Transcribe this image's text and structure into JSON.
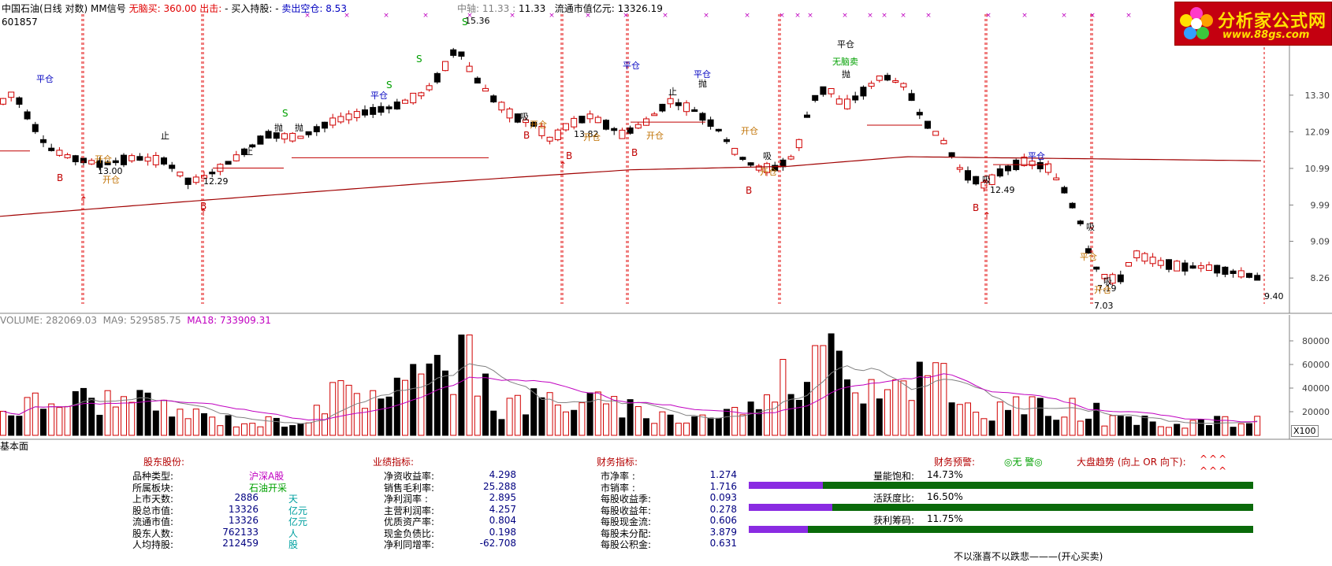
{
  "price_header": {
    "title": "中国石油(日线 对数)",
    "indicator": "MM信号",
    "buy_label": "无脑买:",
    "buy_value": "360.00",
    "sell_label": "出击:",
    "sell_value": "-",
    "hold_label": "买入持股:",
    "hold_value": "-",
    "short_label": "卖出空仓:",
    "short_value": "8.53",
    "axis_label": "中轴:",
    "axis_value_1": "11.33",
    "axis_value_2": "11.33",
    "mcap_label": "流通市值亿元:",
    "mcap_value": "13326.19",
    "code": "601857"
  },
  "volume_header": {
    "volume_label": "VOLUME:",
    "volume_value": "282069.03",
    "ma9_label": "MA9:",
    "ma9_value": "529585.75",
    "ma18_label": "MA18:",
    "ma18_value": "733909.31",
    "multiplier": "X100"
  },
  "logo": {
    "title": "分析家公式网",
    "url": "www.88gs.com"
  },
  "chart_data": [
    {
      "type": "candlestick",
      "title": "中国石油(日线 对数)",
      "y_ticks": [
        13.3,
        12.09,
        10.99,
        9.99,
        9.09,
        8.26
      ],
      "y_range": [
        7.85,
        15.7
      ],
      "y_scale": "log",
      "annotations": [
        "15.36",
        "13.00",
        "12.29",
        "13.82",
        "12.49",
        "9.40",
        "7.03",
        "7.19"
      ],
      "signal_texts": [
        "平仓",
        "开仓",
        "止",
        "吸",
        "抛",
        "S",
        "B",
        "无脑卖"
      ],
      "colors": {
        "up": "#d00000",
        "down": "#000000",
        "ma_long": "#b00000",
        "dashed": "#e00000"
      }
    },
    {
      "type": "bar",
      "title": "VOLUME",
      "y_ticks": [
        80000,
        60000,
        40000,
        20000
      ],
      "y_range": [
        0,
        90000
      ],
      "series": [
        {
          "name": "MA9",
          "color": "#808080"
        },
        {
          "name": "MA18",
          "color": "#c000c0"
        }
      ]
    }
  ],
  "fund": {
    "section_title": "基本面",
    "shareholder": {
      "title": "股东股份:",
      "rows": [
        {
          "label": "品种类型:",
          "value": "",
          "unit": "沪深A股"
        },
        {
          "label": "所属板块:",
          "value": "",
          "unit": "石油开采"
        },
        {
          "label": "上市天数:",
          "value": "2886",
          "unit": "天"
        },
        {
          "label": "股总市值:",
          "value": "13326",
          "unit": "亿元"
        },
        {
          "label": "流通市值:",
          "value": "13326",
          "unit": "亿元"
        },
        {
          "label": "股东人数:",
          "value": "762133",
          "unit": "人"
        },
        {
          "label": "人均持股:",
          "value": "212459",
          "unit": "股"
        }
      ]
    },
    "performance": {
      "title": "业绩指标:",
      "rows": [
        {
          "label": "净资收益率:",
          "value": "4.298"
        },
        {
          "label": "销售毛利率:",
          "value": "25.288"
        },
        {
          "label": "净利润率 :",
          "value": "2.895"
        },
        {
          "label": "主营利润率:",
          "value": "4.257"
        },
        {
          "label": "优质资产率:",
          "value": "0.804"
        },
        {
          "label": "现金负债比:",
          "value": "0.198"
        },
        {
          "label": "净利同增率:",
          "value": "-62.708"
        }
      ]
    },
    "finance": {
      "title": "财务指标:",
      "rows": [
        {
          "label": "市净率 :",
          "value": "1.274"
        },
        {
          "label": "市销率 :",
          "value": "1.716"
        },
        {
          "label": "每股收益季:",
          "value": "0.093"
        },
        {
          "label": "每股收益年:",
          "value": "0.278"
        },
        {
          "label": "每股现金流:",
          "value": "0.606"
        },
        {
          "label": "每股未分配:",
          "value": "3.879"
        },
        {
          "label": "每股公积金:",
          "value": "0.631"
        }
      ]
    },
    "warning": {
      "title": "财务预警:",
      "value": "◎无 警◎"
    },
    "trend": {
      "title": "大盘趋势 (向上 OR 向下):",
      "arrows1": "^^^",
      "arrows2": "^^^"
    },
    "gauges": [
      {
        "label": "量能饱和:",
        "value": "14.73%",
        "fraction": 0.1473
      },
      {
        "label": "活跃度比:",
        "value": "16.50%",
        "fraction": 0.165
      },
      {
        "label": "获利筹码:",
        "value": "11.75%",
        "fraction": 0.1175
      }
    ],
    "slogan": "不以涨喜不以跌悲———(开心买卖)"
  }
}
